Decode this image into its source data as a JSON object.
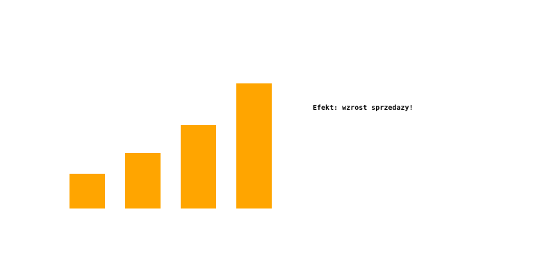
{
  "caption": "Efekt: wzrost sprzedazy!",
  "chart_data": {
    "type": "bar",
    "categories": [
      "",
      "",
      "",
      ""
    ],
    "values": [
      50,
      80,
      120,
      180
    ],
    "title": "",
    "xlabel": "",
    "ylabel": "",
    "ylim": [
      0,
      180
    ],
    "grid": false,
    "bar_color": "#FFA500"
  }
}
